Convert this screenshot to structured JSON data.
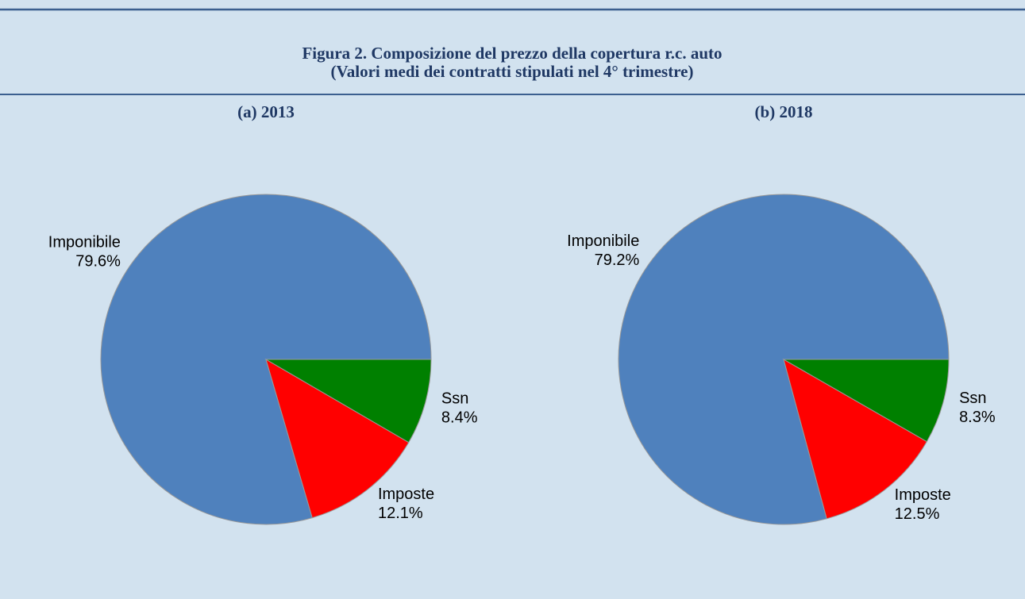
{
  "figure_title": [
    "Figura 2. Composizione del prezzo della copertura r.c. auto",
    "(Valori medi dei contratti stipulati nel  4° trimestre)"
  ],
  "chart_data": [
    {
      "type": "pie",
      "title": "(a)  2013",
      "categories": [
        "Imponibile",
        "Imposte",
        "Ssn"
      ],
      "values": [
        79.6,
        12.1,
        8.4
      ],
      "value_labels": [
        "79.6%",
        "12.1%",
        "8.4%"
      ],
      "colors": [
        "#4f81bd",
        "#ff0000",
        "#008000"
      ]
    },
    {
      "type": "pie",
      "title": "(b) 2018",
      "categories": [
        "Imponibile",
        "Imposte",
        "Ssn"
      ],
      "values": [
        79.2,
        12.5,
        8.3
      ],
      "value_labels": [
        "79.2%",
        "12.5%",
        "8.3%"
      ],
      "colors": [
        "#4f81bd",
        "#ff0000",
        "#008000"
      ]
    }
  ]
}
